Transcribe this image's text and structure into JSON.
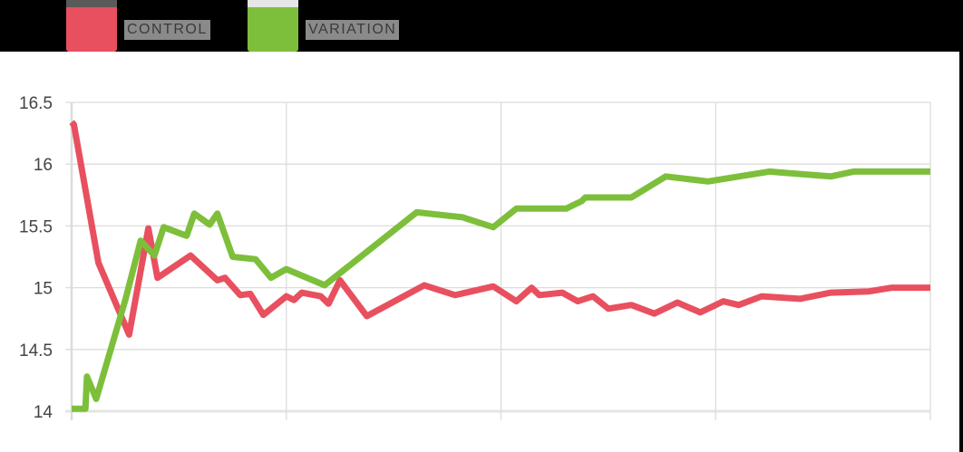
{
  "legend": {
    "items": [
      {
        "label": "CONTROL",
        "color": "#e8505f"
      },
      {
        "label": "VARIATION",
        "color": "#7dbf3b"
      }
    ]
  },
  "axis": {
    "y_ticks": [
      "16.5",
      "16",
      "15.5",
      "15",
      "14.5",
      "14"
    ]
  },
  "chart_data": {
    "type": "line",
    "title": "",
    "xlabel": "",
    "ylabel": "",
    "ylim": [
      14,
      16.5
    ],
    "grid": true,
    "legend_position": "top-left",
    "y_ticks": [
      14,
      14.5,
      15,
      15.5,
      16,
      16.5
    ],
    "x_gridlines": 5,
    "series": [
      {
        "name": "CONTROL",
        "color": "#e8505f",
        "points": [
          [
            0.0,
            16.34
          ],
          [
            0.3,
            16.32
          ],
          [
            3.5,
            15.2
          ],
          [
            7.5,
            14.62
          ],
          [
            10.0,
            15.48
          ],
          [
            11.2,
            15.08
          ],
          [
            15.5,
            15.26
          ],
          [
            19.0,
            15.06
          ],
          [
            20.0,
            15.08
          ],
          [
            22.0,
            14.94
          ],
          [
            23.3,
            14.95
          ],
          [
            25.0,
            14.78
          ],
          [
            28.0,
            14.93
          ],
          [
            29.0,
            14.9
          ],
          [
            30.0,
            14.96
          ],
          [
            32.5,
            14.93
          ],
          [
            33.5,
            14.87
          ],
          [
            35.0,
            15.06
          ],
          [
            38.5,
            14.77
          ],
          [
            46.0,
            15.02
          ],
          [
            50.0,
            14.94
          ],
          [
            55.0,
            15.01
          ],
          [
            58.0,
            14.89
          ],
          [
            60.0,
            15.0
          ],
          [
            61.0,
            14.94
          ],
          [
            64.0,
            14.96
          ],
          [
            66.0,
            14.89
          ],
          [
            68.0,
            14.93
          ],
          [
            70.0,
            14.83
          ],
          [
            73.0,
            14.86
          ],
          [
            76.0,
            14.79
          ],
          [
            79.0,
            14.88
          ],
          [
            82.0,
            14.8
          ],
          [
            85.0,
            14.89
          ],
          [
            87.0,
            14.86
          ],
          [
            90.0,
            14.93
          ],
          [
            95.0,
            14.91
          ],
          [
            99.0,
            14.96
          ],
          [
            104.0,
            14.97
          ],
          [
            107.0,
            15.0
          ],
          [
            112.0,
            15.0
          ]
        ]
      },
      {
        "name": "VARIATION",
        "color": "#7dbf3b",
        "points": [
          [
            0.0,
            14.02
          ],
          [
            1.8,
            14.02
          ],
          [
            2.0,
            14.28
          ],
          [
            3.2,
            14.1
          ],
          [
            7.0,
            14.9
          ],
          [
            9.0,
            15.38
          ],
          [
            10.8,
            15.26
          ],
          [
            12.0,
            15.49
          ],
          [
            15.0,
            15.42
          ],
          [
            16.0,
            15.6
          ],
          [
            18.0,
            15.51
          ],
          [
            19.0,
            15.6
          ],
          [
            21.0,
            15.25
          ],
          [
            24.0,
            15.23
          ],
          [
            26.0,
            15.08
          ],
          [
            28.0,
            15.15
          ],
          [
            33.0,
            15.02
          ],
          [
            45.0,
            15.61
          ],
          [
            51.0,
            15.57
          ],
          [
            55.0,
            15.49
          ],
          [
            58.0,
            15.64
          ],
          [
            64.5,
            15.64
          ],
          [
            66.5,
            15.7
          ],
          [
            67.0,
            15.73
          ],
          [
            73.0,
            15.73
          ],
          [
            77.5,
            15.9
          ],
          [
            83.0,
            15.86
          ],
          [
            91.0,
            15.94
          ],
          [
            99.0,
            15.9
          ],
          [
            102.0,
            15.94
          ],
          [
            112.0,
            15.94
          ]
        ]
      }
    ],
    "x_range": [
      0,
      112
    ]
  }
}
